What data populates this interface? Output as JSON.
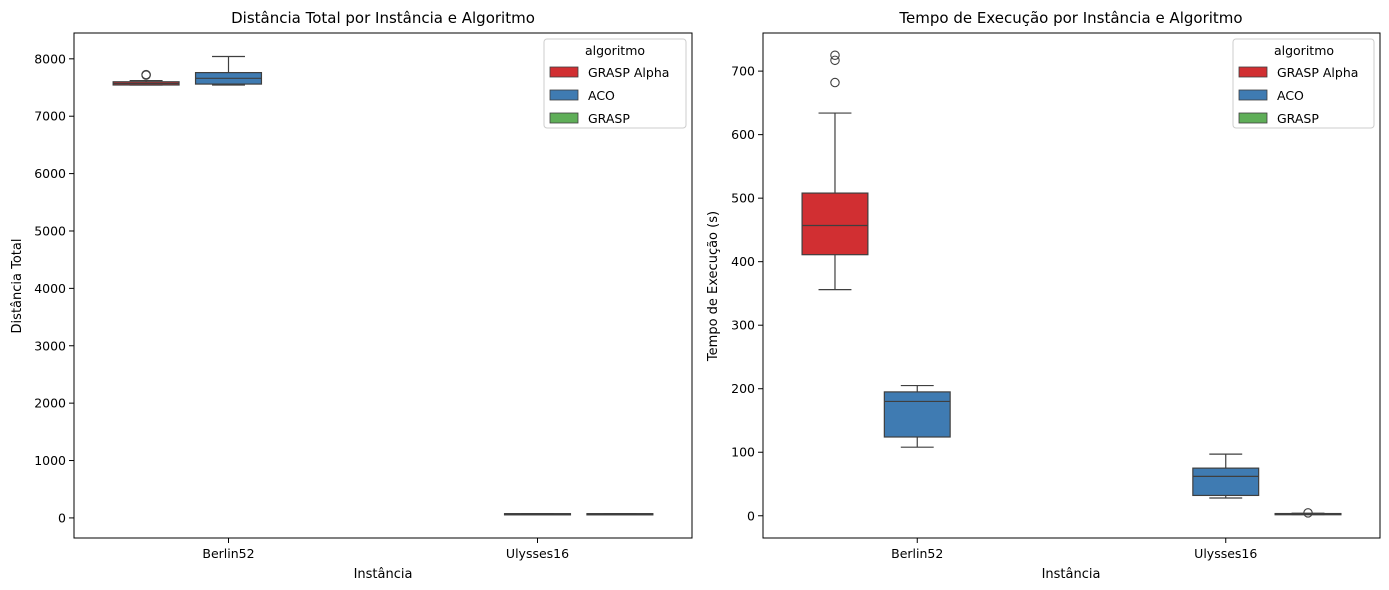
{
  "colors": {
    "GRASP Alpha": "#d12f32",
    "ACO": "#3f7bb2",
    "GRASP": "#5fae58",
    "whisker": "#3f3f3f",
    "frame": "#000000"
  },
  "chart_data": [
    {
      "type": "box",
      "title": "Distância Total por Instância e Algoritmo",
      "xlabel": "Instância",
      "ylabel": "Distância Total",
      "ylim": [
        -350,
        8450
      ],
      "yticks": [
        0,
        1000,
        2000,
        3000,
        4000,
        5000,
        6000,
        7000,
        8000
      ],
      "categories": [
        "Berlin52",
        "Ulysses16"
      ],
      "legend": {
        "title": "algoritmo",
        "entries": [
          "GRASP Alpha",
          "ACO",
          "GRASP"
        ],
        "placement": "top-right"
      },
      "boxes": [
        {
          "category": "Berlin52",
          "series": "GRASP Alpha",
          "whislo": 7544,
          "q1": 7544,
          "med": 7570,
          "q3": 7600,
          "whishi": 7620,
          "fliers": [
            7715,
            7725
          ]
        },
        {
          "category": "Berlin52",
          "series": "ACO",
          "whislo": 7544,
          "q1": 7560,
          "med": 7660,
          "q3": 7760,
          "whishi": 8040,
          "fliers": []
        },
        {
          "category": "Ulysses16",
          "series": "ACO",
          "whislo": 74,
          "q1": 74,
          "med": 74,
          "q3": 74,
          "whishi": 74,
          "fliers": []
        },
        {
          "category": "Ulysses16",
          "series": "GRASP",
          "whislo": 74,
          "q1": 74,
          "med": 74,
          "q3": 74,
          "whishi": 74,
          "fliers": []
        }
      ]
    },
    {
      "type": "box",
      "title": "Tempo de Execução por Instância e Algoritmo",
      "xlabel": "Instância",
      "ylabel": "Tempo de Execução (s)",
      "ylim": [
        -35,
        760
      ],
      "yticks": [
        0,
        100,
        200,
        300,
        400,
        500,
        600,
        700
      ],
      "categories": [
        "Berlin52",
        "Ulysses16"
      ],
      "legend": {
        "title": "algoritmo",
        "entries": [
          "GRASP Alpha",
          "ACO",
          "GRASP"
        ],
        "placement": "top-right"
      },
      "boxes": [
        {
          "category": "Berlin52",
          "series": "GRASP Alpha",
          "whislo": 356,
          "q1": 411,
          "med": 457,
          "q3": 508,
          "whishi": 634,
          "fliers": [
            682,
            717,
            725
          ]
        },
        {
          "category": "Berlin52",
          "series": "ACO",
          "whislo": 108,
          "q1": 124,
          "med": 180,
          "q3": 195,
          "whishi": 205,
          "fliers": []
        },
        {
          "category": "Ulysses16",
          "series": "ACO",
          "whislo": 28,
          "q1": 32,
          "med": 62,
          "q3": 75,
          "whishi": 97,
          "fliers": []
        },
        {
          "category": "Ulysses16",
          "series": "GRASP",
          "whislo": 2,
          "q1": 2.5,
          "med": 3,
          "q3": 3.5,
          "whishi": 4,
          "fliers": [
            4.5
          ]
        }
      ]
    }
  ]
}
